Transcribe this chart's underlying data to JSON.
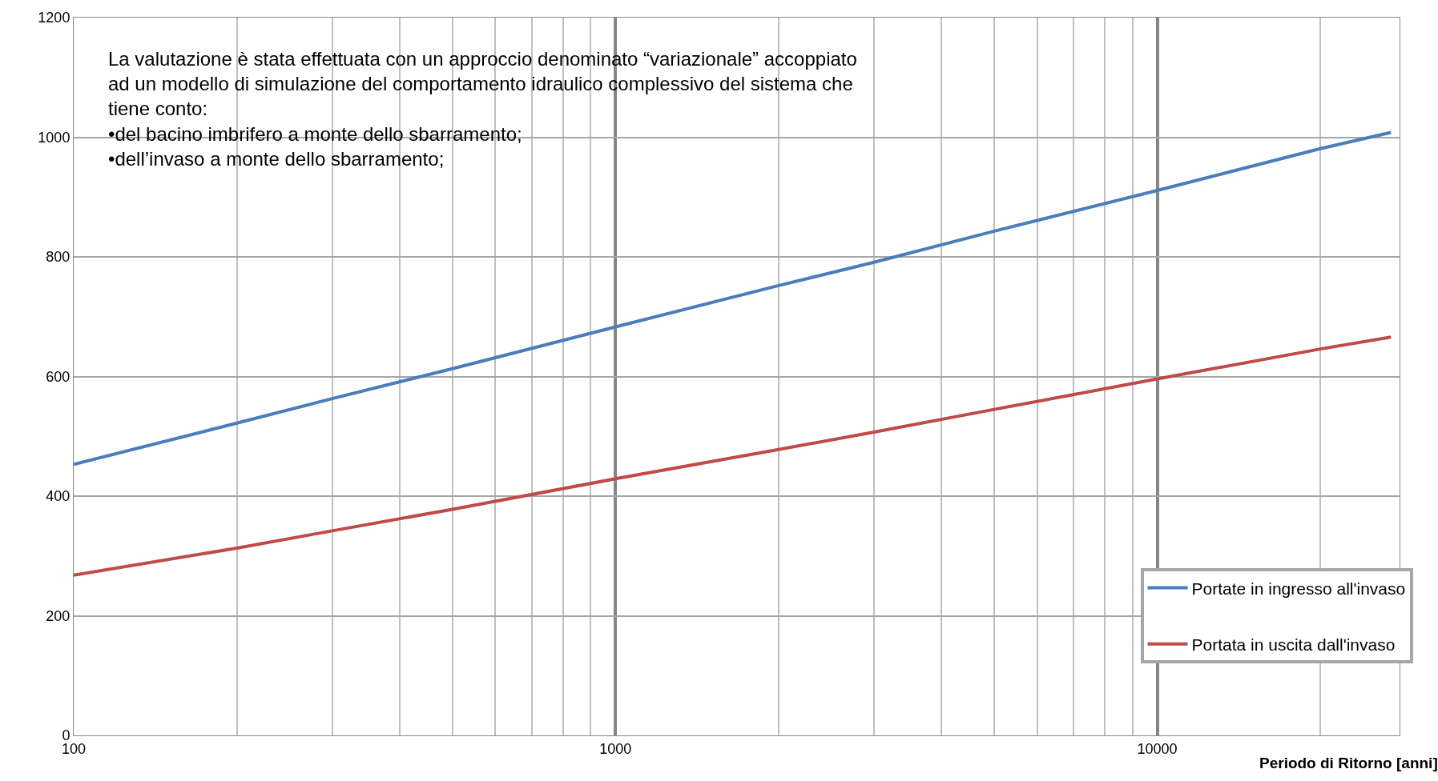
{
  "chart_data": {
    "type": "line",
    "xlabel": "Periodo di Ritorno [anni]",
    "log": "x",
    "x": [
      100,
      200,
      300,
      500,
      1000,
      2000,
      3000,
      5000,
      10000,
      20000,
      27000
    ],
    "series": [
      {
        "name": "Portate in ingresso all'invaso",
        "color": "#4a7ebb",
        "values": [
          453,
          522,
          563,
          613,
          683,
          752,
          791,
          843,
          911,
          981,
          1008
        ]
      },
      {
        "name": "Portata in uscita dall'invaso",
        "color": "#be4b48",
        "values": [
          268,
          313,
          342,
          378,
          429,
          478,
          507,
          545,
          596,
          646,
          666
        ]
      }
    ],
    "xlim": [
      100,
      28000
    ],
    "xticks": [
      100,
      {
        "value": 200,
        "label": null
      },
      {
        "value": 300,
        "label": null
      },
      {
        "value": 400,
        "label": null
      },
      {
        "value": 500,
        "label": null
      },
      {
        "value": 600,
        "label": null
      },
      {
        "value": 700,
        "label": null
      },
      {
        "value": 800,
        "label": null
      },
      {
        "value": 900,
        "label": null
      },
      1000,
      {
        "value": 2000,
        "label": null
      },
      {
        "value": 3000,
        "label": null
      },
      {
        "value": 4000,
        "label": null
      },
      {
        "value": 5000,
        "label": null
      },
      {
        "value": 6000,
        "label": null
      },
      {
        "value": 7000,
        "label": null
      },
      {
        "value": 8000,
        "label": null
      },
      {
        "value": 9000,
        "label": null
      },
      10000,
      {
        "value": 20000,
        "label": null
      }
    ],
    "ylim": [
      0,
      1200
    ],
    "yticks": [
      0,
      200,
      400,
      600,
      800,
      1000,
      1200
    ],
    "grid": true,
    "legend": "bottom right",
    "line_style": "solid",
    "marker": "none",
    "annotations": [
      "La valutazione è stata effettuata con un approccio denominato “variazionale” accoppiato\nad un modello di simulazione del comportamento idraulico complessivo del sistema che\ntiene conto:\n•del bacino imbrifero a monte dello sbarramento;\n•dell’invaso a monte dello sbarramento;"
    ]
  }
}
